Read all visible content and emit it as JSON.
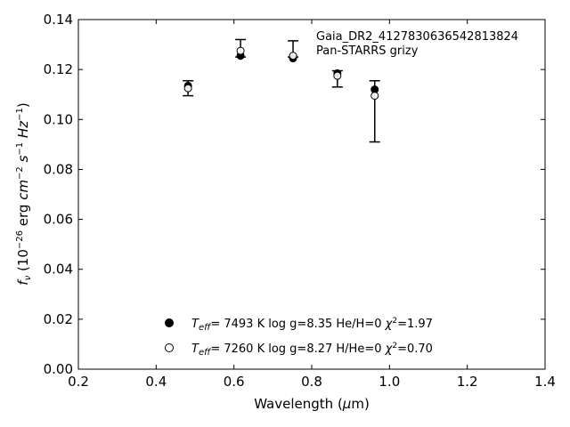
{
  "chart_data": {
    "type": "scatter",
    "xlabel": "Wavelength (μm)",
    "ylabel": "f_ν (10⁻²⁶ erg cm⁻² s⁻¹ Hz⁻¹)",
    "xlim": [
      0.2,
      1.4
    ],
    "ylim": [
      0.0,
      0.14
    ],
    "xticks": [
      0.2,
      0.4,
      0.6,
      0.8,
      1.0,
      1.2,
      1.4
    ],
    "xtick_labels": [
      "0.2",
      "0.4",
      "0.6",
      "0.8",
      "1.0",
      "1.2",
      "1.4"
    ],
    "yticks": [
      0.0,
      0.02,
      0.04,
      0.06,
      0.08,
      0.1,
      0.12,
      0.14
    ],
    "ytick_labels": [
      "0.00",
      "0.02",
      "0.04",
      "0.06",
      "0.08",
      "0.10",
      "0.12",
      "0.14"
    ],
    "annotations": [
      "Gaia_DR2_4127830636542813824",
      "Pan-STARRS grizy"
    ],
    "legend_position": "bottom-center",
    "series": [
      {
        "name": "T_eff= 7493 K log g=8.35 He/H=0 χ²=1.97",
        "marker": "filled-circle",
        "x": [
          0.482,
          0.617,
          0.752,
          0.866,
          0.962
        ],
        "y": [
          0.1135,
          0.1255,
          0.1245,
          0.1185,
          0.112
        ]
      },
      {
        "name": "T_eff= 7260 K log g=8.27 H/He=0 χ²=0.70",
        "marker": "open-circle",
        "x": [
          0.482,
          0.617,
          0.752,
          0.866,
          0.962
        ],
        "y": [
          0.1125,
          0.1275,
          0.1255,
          0.1175,
          0.1095
        ],
        "yerr_low": [
          0.1095,
          0.125,
          0.125,
          0.113,
          0.091
        ],
        "yerr_high": [
          0.1155,
          0.132,
          0.1315,
          0.1195,
          0.1155
        ]
      }
    ]
  }
}
